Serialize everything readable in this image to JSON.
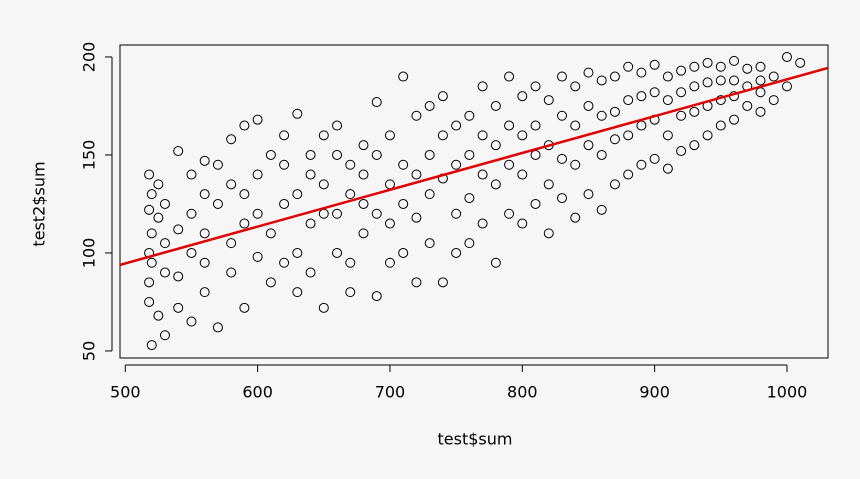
{
  "chart_data": {
    "type": "scatter",
    "x_label": "test$sum",
    "y_label": "test2$sum",
    "xlim": [
      496,
      1031
    ],
    "ylim": [
      46.4,
      206.1
    ],
    "xticks": [
      500,
      600,
      700,
      800,
      900,
      1000
    ],
    "yticks": [
      50,
      100,
      150,
      200
    ],
    "x": [
      518,
      518,
      518,
      518,
      518,
      520,
      520,
      520,
      520,
      525,
      525,
      525,
      530,
      530,
      530,
      530,
      540,
      540,
      540,
      540,
      550,
      550,
      550,
      550,
      560,
      560,
      560,
      560,
      560,
      570,
      570,
      570,
      580,
      580,
      580,
      580,
      590,
      590,
      590,
      590,
      600,
      600,
      600,
      600,
      610,
      610,
      610,
      620,
      620,
      620,
      620,
      630,
      630,
      630,
      630,
      640,
      640,
      640,
      640,
      650,
      650,
      650,
      650,
      660,
      660,
      660,
      660,
      670,
      670,
      670,
      670,
      680,
      680,
      680,
      680,
      690,
      690,
      690,
      690,
      700,
      700,
      700,
      700,
      710,
      710,
      710,
      710,
      720,
      720,
      720,
      720,
      730,
      730,
      730,
      730,
      740,
      740,
      740,
      740,
      750,
      750,
      750,
      750,
      760,
      760,
      760,
      760,
      770,
      770,
      770,
      770,
      780,
      780,
      780,
      780,
      790,
      790,
      790,
      790,
      800,
      800,
      800,
      800,
      810,
      810,
      810,
      810,
      820,
      820,
      820,
      820,
      830,
      830,
      830,
      830,
      840,
      840,
      840,
      840,
      850,
      850,
      850,
      850,
      860,
      860,
      860,
      860,
      870,
      870,
      870,
      870,
      880,
      880,
      880,
      880,
      890,
      890,
      890,
      890,
      900,
      900,
      900,
      900,
      910,
      910,
      910,
      910,
      920,
      920,
      920,
      920,
      930,
      930,
      930,
      930,
      940,
      940,
      940,
      940,
      950,
      950,
      950,
      950,
      960,
      960,
      960,
      960,
      970,
      970,
      970,
      980,
      980,
      980,
      980,
      990,
      990,
      1000,
      1000,
      1010
    ],
    "series": [
      {
        "color": "#000000",
        "values": [
          100,
          122,
          85,
          140,
          75,
          53,
          110,
          95,
          130,
          118,
          68,
          135,
          105,
          58,
          125,
          90,
          152,
          88,
          112,
          72,
          120,
          100,
          140,
          65,
          147,
          95,
          110,
          130,
          80,
          125,
          62,
          145,
          158,
          105,
          90,
          135,
          165,
          115,
          72,
          130,
          168,
          98,
          140,
          120,
          110,
          150,
          85,
          145,
          125,
          95,
          160,
          171,
          130,
          100,
          80,
          150,
          115,
          140,
          90,
          160,
          135,
          72,
          120,
          120,
          150,
          100,
          165,
          145,
          130,
          95,
          80,
          155,
          125,
          110,
          140,
          177,
          150,
          120,
          78,
          160,
          135,
          115,
          95,
          190,
          145,
          125,
          100,
          170,
          140,
          118,
          85,
          175,
          150,
          130,
          105,
          180,
          160,
          138,
          85,
          165,
          145,
          120,
          100,
          170,
          150,
          128,
          105,
          185,
          160,
          140,
          115,
          175,
          155,
          135,
          95,
          190,
          165,
          145,
          120,
          180,
          160,
          140,
          115,
          185,
          165,
          150,
          125,
          178,
          155,
          135,
          110,
          190,
          170,
          148,
          128,
          185,
          165,
          145,
          118,
          192,
          175,
          155,
          130,
          188,
          170,
          150,
          122,
          190,
          172,
          158,
          135,
          195,
          178,
          160,
          140,
          192,
          180,
          165,
          145,
          196,
          182,
          168,
          148,
          190,
          178,
          160,
          143,
          193,
          182,
          170,
          152,
          195,
          185,
          172,
          155,
          197,
          187,
          175,
          160,
          195,
          188,
          178,
          165,
          198,
          188,
          180,
          168,
          194,
          185,
          175,
          195,
          188,
          182,
          172,
          190,
          178,
          200,
          185,
          197
        ]
      }
    ],
    "regression_line": {
      "color": "#e00000",
      "x": [
        496,
        1031
      ],
      "y": [
        93.9,
        194.4
      ]
    }
  }
}
